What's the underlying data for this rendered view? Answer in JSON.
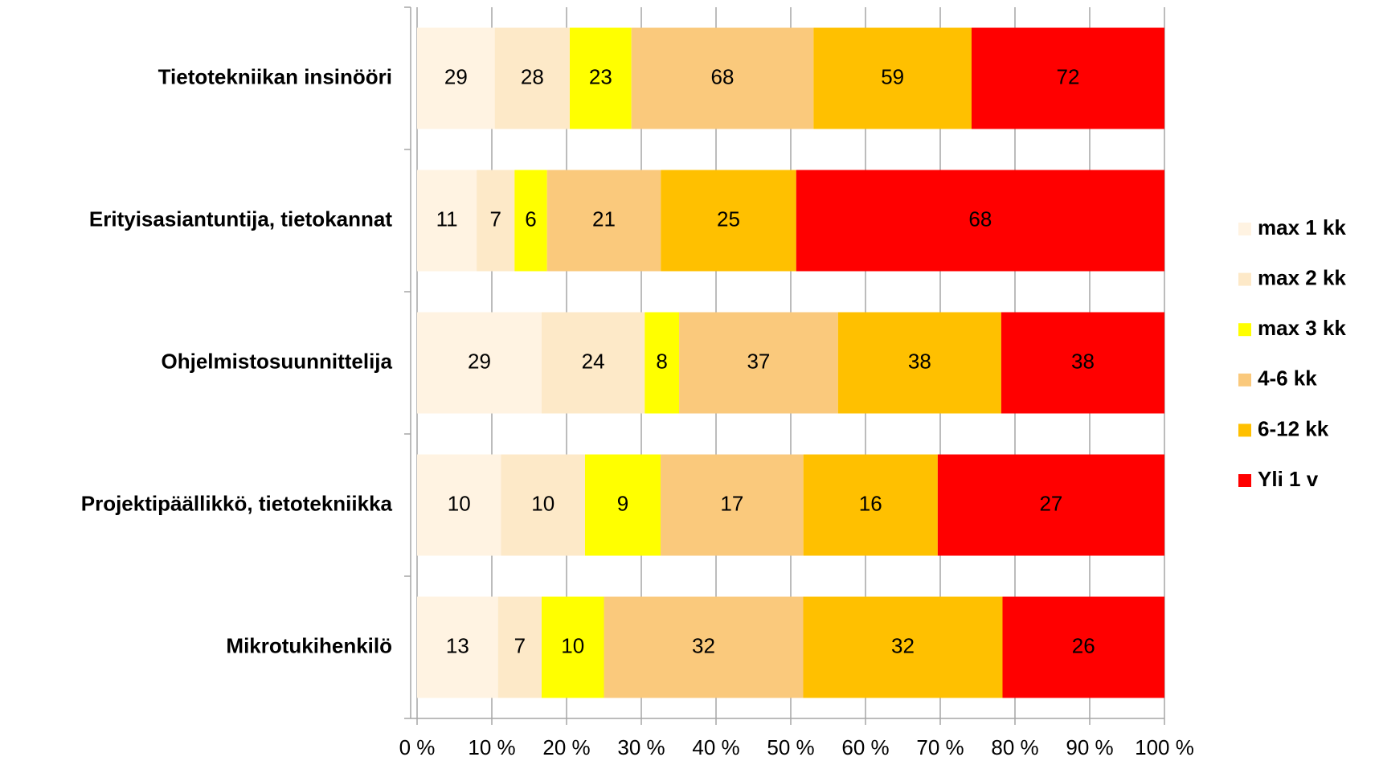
{
  "chart_data": {
    "type": "bar",
    "orientation": "horizontal",
    "stacked": "percent",
    "categories": [
      "Tietotekniikan insinööri",
      "Erityisasiantuntija, tietokannat",
      "Ohjelmistosuunnittelija",
      "Projektipäällikkö, tietotekniikka",
      "Mikrotukihenkilö"
    ],
    "series": [
      {
        "name": "max 1 kk",
        "color": "#fff3e2",
        "values": [
          29,
          11,
          29,
          10,
          13
        ]
      },
      {
        "name": "max 2 kk",
        "color": "#fde9c8",
        "values": [
          28,
          7,
          24,
          10,
          7
        ]
      },
      {
        "name": "max 3 kk",
        "color": "#ffff00",
        "values": [
          23,
          6,
          8,
          9,
          10
        ]
      },
      {
        "name": "4-6 kk",
        "color": "#fac97c",
        "values": [
          68,
          21,
          37,
          17,
          32
        ]
      },
      {
        "name": "6-12 kk",
        "color": "#ffc000",
        "values": [
          59,
          25,
          38,
          16,
          32
        ]
      },
      {
        "name": "Yli 1 v",
        "color": "#ff0000",
        "values": [
          72,
          68,
          38,
          27,
          26
        ]
      }
    ],
    "xlim": [
      0,
      100
    ],
    "xticks": [
      {
        "value": 0,
        "label": "0 %"
      },
      {
        "value": 10,
        "label": "10 %"
      },
      {
        "value": 20,
        "label": "20 %"
      },
      {
        "value": 30,
        "label": "30 %"
      },
      {
        "value": 40,
        "label": "40 %"
      },
      {
        "value": 50,
        "label": "50 %"
      },
      {
        "value": 60,
        "label": "60 %"
      },
      {
        "value": 70,
        "label": "70 %"
      },
      {
        "value": 80,
        "label": "80 %"
      },
      {
        "value": 90,
        "label": "90 %"
      },
      {
        "value": 100,
        "label": "100 %"
      }
    ],
    "grid": true,
    "legend": "right"
  }
}
